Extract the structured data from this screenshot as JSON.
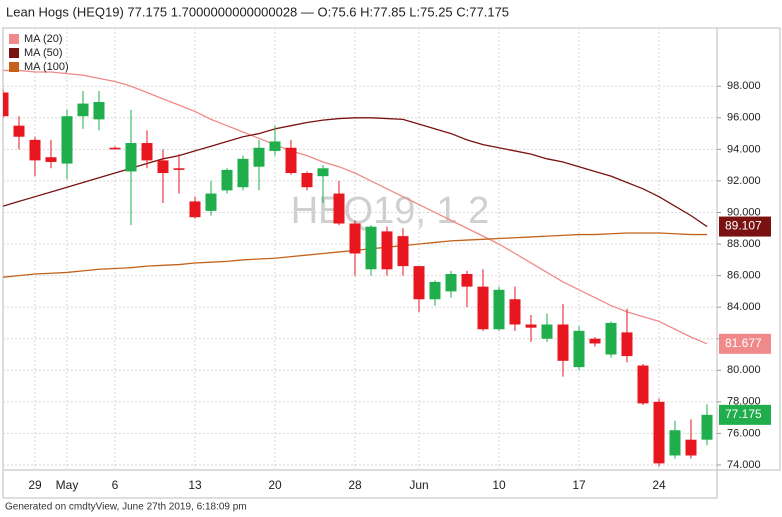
{
  "chart_data": {
    "type": "candlestick",
    "title": "Lean Hogs (HEQ19) 77.175 1.7000000000000028 — O:75.6 H:77.85 L:75.25 C:77.175",
    "watermark": "HEQ19, 1 2",
    "footer": "Generated on cmdtyView, June 27th 2019, 6:18:09 pm",
    "categories": [
      null,
      null,
      "29",
      null,
      "May",
      null,
      null,
      "6",
      null,
      null,
      null,
      null,
      "13",
      null,
      null,
      null,
      null,
      "20",
      null,
      null,
      null,
      null,
      "28",
      null,
      null,
      null,
      "Jun",
      null,
      null,
      null,
      null,
      "10",
      null,
      null,
      null,
      null,
      "17",
      null,
      null,
      null,
      null,
      "24",
      null,
      null,
      null
    ],
    "open": [
      97.6,
      95.5,
      94.6,
      93.5,
      93.1,
      96.1,
      95.9,
      94.1,
      92.6,
      94.4,
      93.3,
      92.8,
      90.7,
      90.1,
      91.4,
      91.6,
      92.9,
      93.9,
      94.1,
      92.5,
      92.3,
      91.2,
      89.3,
      86.4,
      88.8,
      88.5,
      86.6,
      84.5,
      85.0,
      86.1,
      85.3,
      82.6,
      84.5,
      82.9,
      82.0,
      82.9,
      80.2,
      82.0,
      81.0,
      82.4,
      80.3,
      78.0,
      74.6,
      75.6,
      75.6
    ],
    "high": [
      97.8,
      96.1,
      94.8,
      94.6,
      96.5,
      97.7,
      97.7,
      94.2,
      96.5,
      95.2,
      94.0,
      93.7,
      91.0,
      92.0,
      92.8,
      93.6,
      94.6,
      95.5,
      94.6,
      92.6,
      93.0,
      92.0,
      89.5,
      89.2,
      89.1,
      89.0,
      86.6,
      85.7,
      86.3,
      86.3,
      86.4,
      85.3,
      85.3,
      83.5,
      83.6,
      84.2,
      82.8,
      82.1,
      83.1,
      83.9,
      80.4,
      78.2,
      76.8,
      76.9,
      77.85
    ],
    "low": [
      96.0,
      94.0,
      92.3,
      92.8,
      92.1,
      95.3,
      95.2,
      94.0,
      89.2,
      92.8,
      90.6,
      91.2,
      89.6,
      89.8,
      91.2,
      91.4,
      91.4,
      93.6,
      92.4,
      91.4,
      90.6,
      89.2,
      86.0,
      86.0,
      86.0,
      86.0,
      83.7,
      84.1,
      84.6,
      84.0,
      82.5,
      82.5,
      82.5,
      81.8,
      81.8,
      79.6,
      80.0,
      81.5,
      80.8,
      80.5,
      77.8,
      73.9,
      74.4,
      74.4,
      75.25
    ],
    "close": [
      96.1,
      94.8,
      93.3,
      93.2,
      96.1,
      96.9,
      97.0,
      94.0,
      94.4,
      93.3,
      92.5,
      92.7,
      89.7,
      91.2,
      92.7,
      93.4,
      94.1,
      94.5,
      92.5,
      91.6,
      92.8,
      89.3,
      87.4,
      89.1,
      86.4,
      86.6,
      84.5,
      85.6,
      86.1,
      85.3,
      82.6,
      85.1,
      82.9,
      82.7,
      82.9,
      80.6,
      82.5,
      81.7,
      83.0,
      80.9,
      77.9,
      74.1,
      76.2,
      74.6,
      77.175
    ],
    "up_color": "#1fae4b",
    "down_color": "#e8161e",
    "series": [
      {
        "name": "MA (20)",
        "color": "#f08a8a",
        "values": [
          99.0,
          99.0,
          98.9,
          98.9,
          98.8,
          98.7,
          98.5,
          98.3,
          98.0,
          97.6,
          97.2,
          96.8,
          96.4,
          95.9,
          95.5,
          95.1,
          94.7,
          94.3,
          93.9,
          93.6,
          93.2,
          92.9,
          92.5,
          92.0,
          91.5,
          91.0,
          90.5,
          90.0,
          89.5,
          89.0,
          88.5,
          88.0,
          87.4,
          86.8,
          86.2,
          85.6,
          85.1,
          84.6,
          84.1,
          83.7,
          83.4,
          83.1,
          82.6,
          82.1,
          81.677
        ]
      },
      {
        "name": "MA (50)",
        "color": "#7a1212",
        "values": [
          90.4,
          90.7,
          91.0,
          91.3,
          91.6,
          91.9,
          92.2,
          92.5,
          92.8,
          93.1,
          93.4,
          93.6,
          93.9,
          94.2,
          94.5,
          94.8,
          95.0,
          95.3,
          95.5,
          95.7,
          95.85,
          95.95,
          96.0,
          96.0,
          95.95,
          95.9,
          95.6,
          95.3,
          95.0,
          94.6,
          94.3,
          94.1,
          93.9,
          93.7,
          93.4,
          93.2,
          92.9,
          92.6,
          92.3,
          91.9,
          91.5,
          91.0,
          90.4,
          89.8,
          89.107
        ]
      },
      {
        "name": "MA (100)",
        "color": "#c4621c",
        "values": [
          85.9,
          86.0,
          86.1,
          86.15,
          86.2,
          86.3,
          86.4,
          86.45,
          86.5,
          86.6,
          86.65,
          86.7,
          86.8,
          86.85,
          86.9,
          87.0,
          87.05,
          87.1,
          87.2,
          87.3,
          87.4,
          87.5,
          87.6,
          87.7,
          87.8,
          87.9,
          88.0,
          88.1,
          88.2,
          88.25,
          88.3,
          88.35,
          88.4,
          88.45,
          88.5,
          88.55,
          88.6,
          88.6,
          88.65,
          88.7,
          88.7,
          88.7,
          88.65,
          88.6,
          88.6
        ]
      }
    ],
    "last_value_labels": [
      0,
      1
    ],
    "ylim": [
      73.68,
      101.69
    ],
    "yticks": [
      {
        "value": 74,
        "label": "74.000"
      },
      {
        "value": 76,
        "label": "76.000"
      },
      {
        "value": 78,
        "label": "78.000"
      },
      {
        "value": 80,
        "label": "80.000"
      },
      {
        "value": 82,
        "label": "82.000"
      },
      {
        "value": 84,
        "label": "84.000"
      },
      {
        "value": 86,
        "label": "86.000"
      },
      {
        "value": 88,
        "label": "88.000"
      },
      {
        "value": 90,
        "label": "90.000"
      },
      {
        "value": 92,
        "label": "92.000"
      },
      {
        "value": 94,
        "label": "94.000"
      },
      {
        "value": 96,
        "label": "96.000"
      },
      {
        "value": 98,
        "label": "98.000"
      }
    ],
    "grid": true,
    "legend": "top-left"
  }
}
